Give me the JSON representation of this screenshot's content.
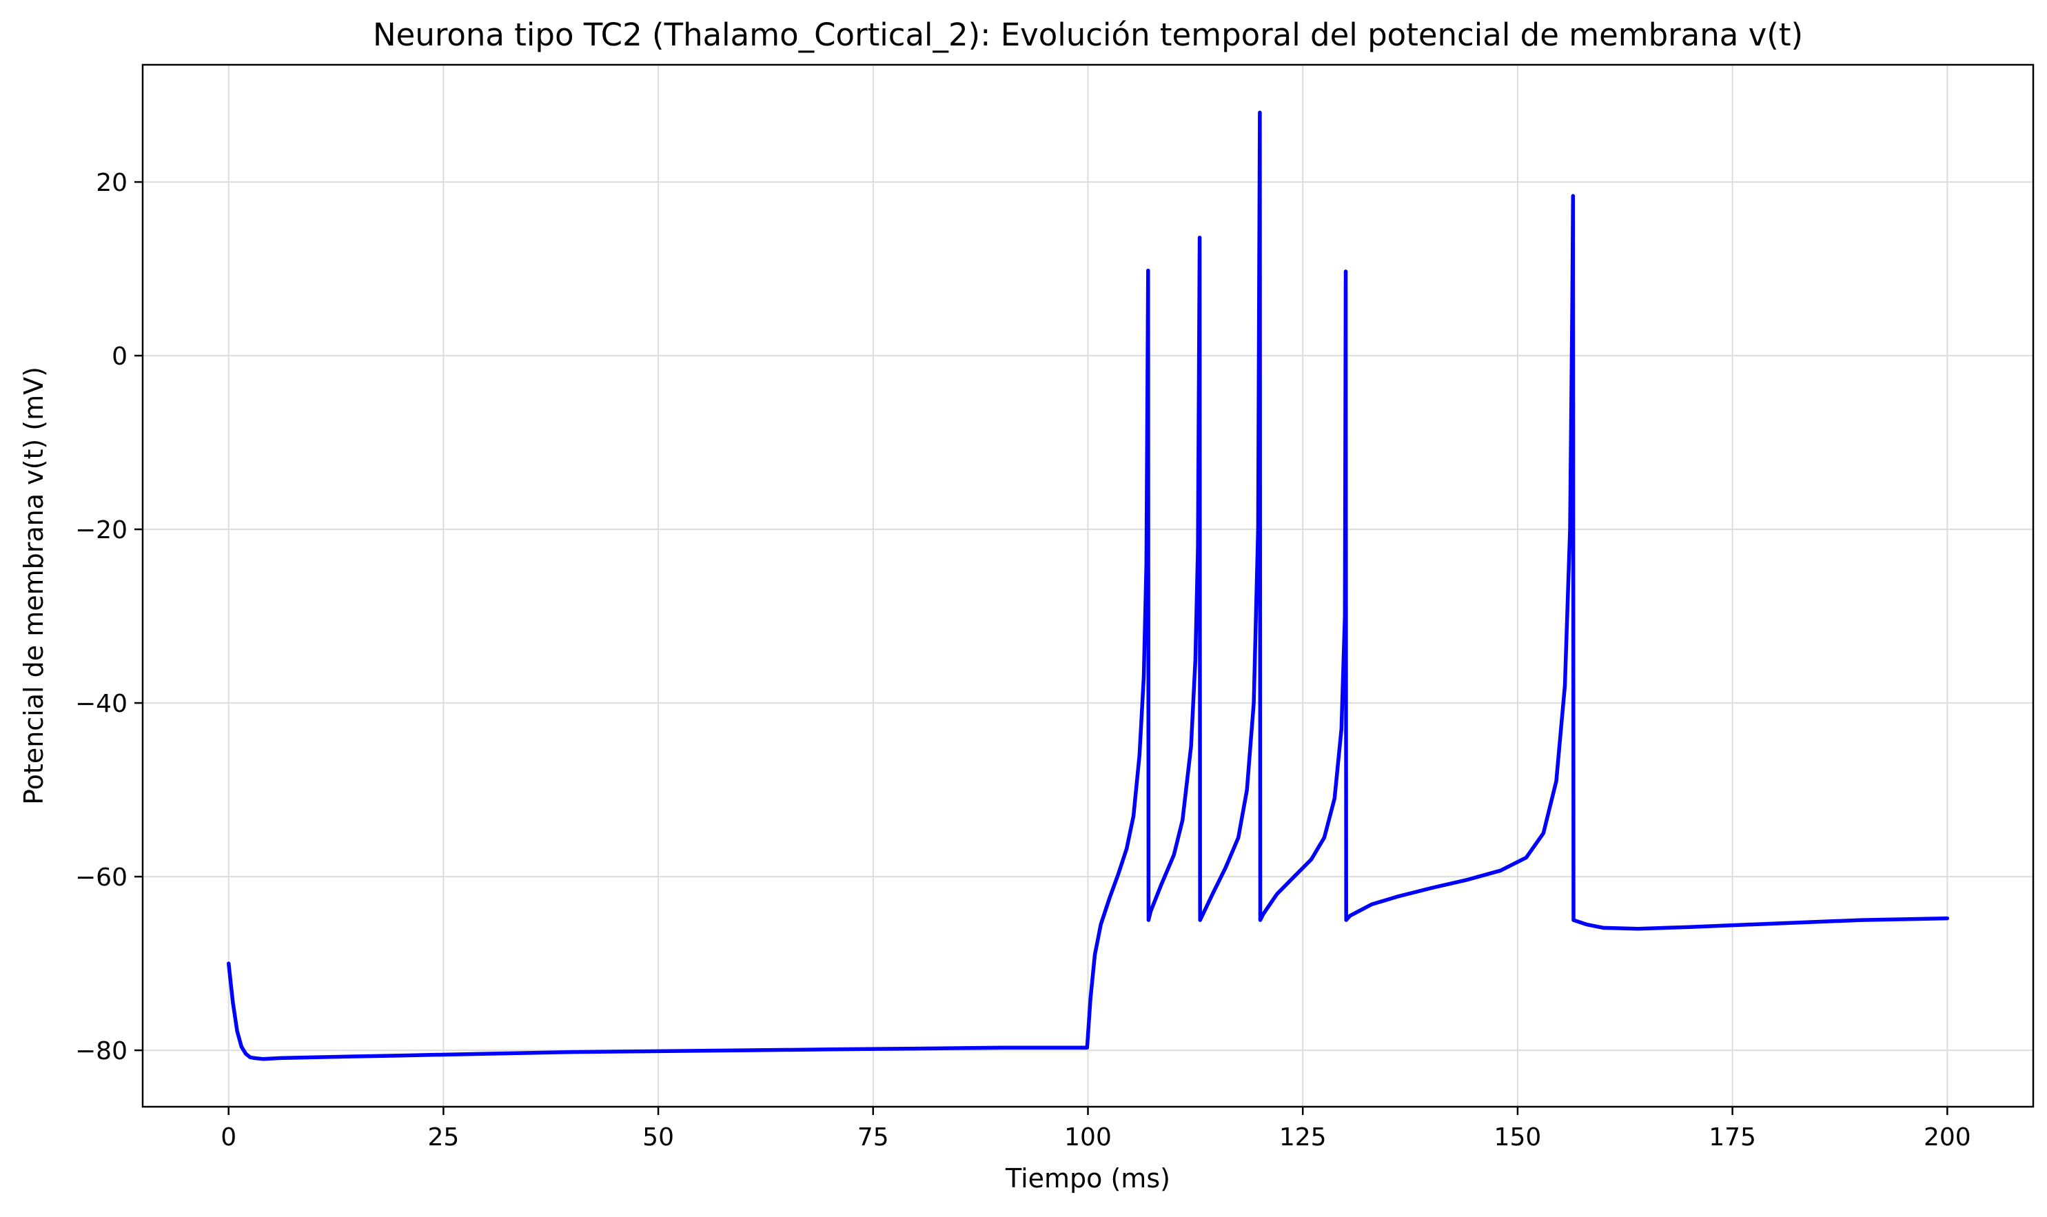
{
  "chart_data": {
    "type": "line",
    "title": "Neurona tipo TC2 (Thalamo_Cortical_2): Evolución temporal del potencial de membrana v(t)",
    "xlabel": "Tiempo (ms)",
    "ylabel": "Potencial de membrana v(t) (mV)",
    "xlim": [
      -10,
      210
    ],
    "ylim": [
      -86.5,
      33.5
    ],
    "xticks": [
      0,
      25,
      50,
      75,
      100,
      125,
      150,
      175,
      200
    ],
    "yticks": [
      -80,
      -60,
      -40,
      -20,
      0,
      20
    ],
    "grid": true,
    "colors": {
      "line": "#0000ff",
      "grid": "#dcdcdc",
      "axes": "#000000"
    },
    "series": [
      {
        "x": [
          0,
          0.5,
          1,
          1.5,
          2,
          2.5,
          3,
          4,
          6,
          10,
          20,
          30,
          40,
          50,
          60,
          70,
          80,
          90,
          99.9,
          100.3,
          100.8,
          101.5,
          102.5,
          103.5,
          104.5,
          105.3,
          106.0,
          106.5,
          106.8,
          107.0,
          107.05,
          107.3,
          108.5,
          110,
          111,
          112,
          112.5,
          112.8,
          113.0,
          113.05,
          113.3,
          114.5,
          116,
          117.5,
          118.5,
          119.3,
          119.8,
          120.0,
          120.05,
          120.4,
          122,
          124,
          126,
          127.5,
          128.7,
          129.5,
          129.9,
          130.0,
          130.05,
          130.5,
          133,
          136,
          140,
          144,
          148,
          151,
          153,
          154.5,
          155.5,
          156.1,
          156.35,
          156.45,
          156.5,
          158,
          160,
          164,
          170,
          180,
          190,
          200
        ],
        "y": [
          -70.0,
          -74.5,
          -77.8,
          -79.6,
          -80.4,
          -80.8,
          -80.9,
          -81.0,
          -80.9,
          -80.8,
          -80.6,
          -80.4,
          -80.2,
          -80.1,
          -80.0,
          -79.9,
          -79.8,
          -79.7,
          -79.7,
          -74.0,
          -69.0,
          -65.5,
          -62.5,
          -59.8,
          -56.8,
          -53.0,
          -46.0,
          -37.0,
          -24.0,
          9.8,
          -65.0,
          -64.0,
          -61.0,
          -57.5,
          -53.5,
          -45.0,
          -35.0,
          -22.0,
          13.6,
          -65.0,
          -64.5,
          -62.0,
          -59.0,
          -55.5,
          -50.0,
          -40.0,
          -20.0,
          28.0,
          -65.0,
          -64.3,
          -62.0,
          -60.0,
          -58.0,
          -55.5,
          -51.0,
          -43.0,
          -30.0,
          9.7,
          -65.0,
          -64.5,
          -63.2,
          -62.3,
          -61.3,
          -60.4,
          -59.3,
          -57.8,
          -55.0,
          -49.0,
          -38.0,
          -20.0,
          5.0,
          18.4,
          -65.0,
          -65.5,
          -65.9,
          -66.0,
          -65.8,
          -65.4,
          -65.0,
          -64.8
        ]
      }
    ]
  }
}
